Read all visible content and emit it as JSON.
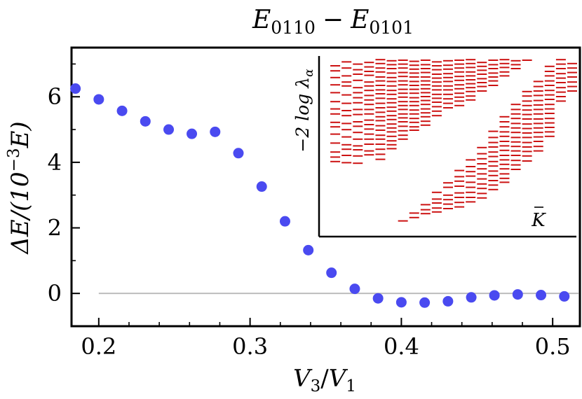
{
  "chart_data": {
    "type": "scatter",
    "title": "E0110 − E0101",
    "title_parts": {
      "E": "E",
      "sub1": "0110",
      "minus": "−",
      "sub2": "0101"
    },
    "xlabel": "V3/V1",
    "xlabel_parts": {
      "V1": "V",
      "s1": "3",
      "slash": "/",
      "V2": "V",
      "s2": "1"
    },
    "ylabel": "ΔE/(10⁻³E)",
    "ylabel_parts": {
      "pre": "ΔE/(10",
      "exp": "−3",
      "post": "E)"
    },
    "xlim": [
      0.182,
      0.518
    ],
    "ylim": [
      -1.0,
      7.5
    ],
    "x_ticks": [
      0.2,
      0.3,
      0.4,
      0.5
    ],
    "x_tick_labels": [
      "0.2",
      "0.3",
      "0.4",
      "0.5"
    ],
    "y_ticks": [
      0,
      2,
      4,
      6
    ],
    "y_tick_labels": [
      "0",
      "2",
      "4",
      "6"
    ],
    "zero_line": {
      "from_x": 0.2,
      "to_x": 0.518,
      "color": "#bdbdbd"
    },
    "marker_color": "#4a4af0",
    "series": [
      {
        "x": [
          0.1846,
          0.2,
          0.2154,
          0.2308,
          0.2462,
          0.2615,
          0.2769,
          0.2923,
          0.3077,
          0.3231,
          0.3385,
          0.3538,
          0.3692,
          0.3846,
          0.4,
          0.4154,
          0.4308,
          0.4462,
          0.4615,
          0.4769,
          0.4923,
          0.5077
        ],
        "y": [
          6.25,
          5.92,
          5.57,
          5.25,
          5.0,
          4.87,
          4.93,
          4.28,
          3.26,
          2.2,
          1.32,
          0.63,
          0.14,
          -0.15,
          -0.27,
          -0.28,
          -0.24,
          -0.12,
          -0.06,
          -0.03,
          -0.05,
          -0.09
        ]
      }
    ],
    "inset": {
      "type": "entanglement-spectrum",
      "ylabel": "−2 log λα",
      "ylabel_parts": {
        "pre": "−2 log λ",
        "sub": "α"
      },
      "xlabel": "K̄",
      "xlabel_parts": {
        "K": "K",
        "bar": "¯"
      },
      "color": "#cc1111",
      "xlim": [
        0,
        22
      ],
      "ylim": [
        0,
        30
      ],
      "columns": [
        {
          "k": 1,
          "levels": [
            1.5,
            2.4,
            3.6,
            4.9,
            6.3,
            7.9,
            9.2,
            10.1,
            11.6,
            12.4,
            13.7,
            15.3,
            16.9,
            17.8,
            18.6
          ]
        },
        {
          "k": 2,
          "levels": [
            0.8,
            1.9,
            3.3,
            4.4,
            5.1,
            6.7,
            8.2,
            9.5,
            10.4,
            11.8,
            12.9,
            14.2,
            15.6,
            16.4,
            17.5,
            18.8
          ]
        },
        {
          "k": 3,
          "levels": [
            1.2,
            2.2,
            3.0,
            4.1,
            5.4,
            6.3,
            7.2,
            8.1,
            9.3,
            10.2,
            11.5,
            12.3,
            13.4,
            14.6,
            15.8,
            16.5,
            17.6,
            18.9
          ]
        },
        {
          "k": 4,
          "levels": [
            0.9,
            1.7,
            2.5,
            3.2,
            4.4,
            5.1,
            5.9,
            6.8,
            7.6,
            8.4,
            9.3,
            10.1,
            11.2,
            12.0,
            12.8,
            13.7,
            14.6,
            15.5,
            16.7,
            17.4
          ]
        },
        {
          "k": 5,
          "levels": [
            0.4,
            1.1,
            1.9,
            2.6,
            3.5,
            4.2,
            5.0,
            5.8,
            6.5,
            7.3,
            8.2,
            9.0,
            9.8,
            10.6,
            11.3,
            12.2,
            13.0,
            13.9,
            14.6,
            15.5,
            16.4,
            17.3,
            18.2
          ]
        },
        {
          "k": 6,
          "levels": [
            0.6,
            1.3,
            2.0,
            2.8,
            3.6,
            4.3,
            5.1,
            5.9,
            6.6,
            7.4,
            8.1,
            8.9,
            9.6,
            10.4,
            11.1,
            11.9,
            12.6,
            13.3,
            14.1,
            14.9,
            15.6,
            16.3
          ]
        },
        {
          "k": 7,
          "levels": [
            0.5,
            1.2,
            1.9,
            2.7,
            3.4,
            4.2,
            4.9,
            5.7,
            6.4,
            7.1,
            7.9,
            8.6,
            9.3,
            10.1,
            10.8,
            11.5,
            12.3,
            13.1,
            13.9,
            14.6
          ]
        },
        {
          "k": 8,
          "levels": [
            0.7,
            1.4,
            2.1,
            2.8,
            3.5,
            4.3,
            5.0,
            5.7,
            6.4,
            7.2,
            7.9,
            8.6,
            9.4,
            10.1,
            10.9,
            11.6,
            12.4,
            13.0
          ]
        },
        {
          "k": 9,
          "levels": [
            0.5,
            1.3,
            2.0,
            2.7,
            3.5,
            4.2,
            4.9,
            5.6,
            6.3,
            7.0,
            7.7,
            8.4,
            9.2,
            9.9,
            10.6,
            11.4,
            12.1
          ]
        },
        {
          "k": 10,
          "levels": [
            0.8,
            1.5,
            2.2,
            3.0,
            3.7,
            4.4,
            5.1,
            5.8,
            6.6,
            7.3,
            8.0,
            8.8,
            9.6,
            10.4
          ]
        },
        {
          "k": 11,
          "levels": [
            0.6,
            1.4,
            2.1,
            2.9,
            3.6,
            4.3,
            5.1,
            5.8,
            6.6,
            7.4,
            8.2,
            9.0
          ]
        },
        {
          "k": 12,
          "levels": [
            0.5,
            1.2,
            1.9,
            2.6,
            3.4,
            4.1,
            4.9,
            5.6,
            6.4,
            7.1,
            7.8,
            8.6
          ]
        },
        {
          "k": 13,
          "levels": [
            0.4,
            1.1,
            1.8,
            2.6,
            3.3,
            4.0,
            4.7,
            5.4,
            6.1,
            6.9,
            7.6
          ]
        },
        {
          "k": 14,
          "levels": [
            0.9,
            1.6,
            2.3,
            3.0,
            3.8,
            4.5,
            5.2,
            6.0
          ]
        },
        {
          "k": 15,
          "levels": [
            0.5,
            1.3,
            2.0,
            2.8,
            3.5,
            4.2,
            5.0
          ]
        },
        {
          "k": 16,
          "levels": [
            0.4,
            1.1,
            1.8,
            2.6,
            3.3
          ]
        },
        {
          "k": 17,
          "levels": [
            0.6,
            1.3,
            2.0
          ]
        },
        {
          "k": 18,
          "levels": [
            0.5
          ]
        },
        {
          "k": 7,
          "levels": [
            29.2
          ]
        },
        {
          "k": 8,
          "levels": [
            27.8,
            28.6
          ]
        },
        {
          "k": 9,
          "levels": [
            26.3,
            27.2,
            27.9
          ]
        },
        {
          "k": 10,
          "levels": [
            24.1,
            25.3,
            26.0,
            26.9,
            27.6
          ]
        },
        {
          "k": 11,
          "levels": [
            22.4,
            23.2,
            24.6,
            25.4,
            26.2,
            27.0
          ]
        },
        {
          "k": 12,
          "levels": [
            20.2,
            21.3,
            22.1,
            23.0,
            24.2,
            25.0,
            25.9,
            26.7
          ]
        },
        {
          "k": 13,
          "levels": [
            18.3,
            19.5,
            20.4,
            21.2,
            22.3,
            23.2,
            24.1,
            25.0,
            25.8
          ]
        },
        {
          "k": 14,
          "levels": [
            16.1,
            17.2,
            18.1,
            19.0,
            19.9,
            20.8,
            21.7,
            22.6,
            23.4,
            24.3,
            25.1
          ]
        },
        {
          "k": 15,
          "levels": [
            13.2,
            14.3,
            15.2,
            16.0,
            16.9,
            17.7,
            18.6,
            19.4,
            20.3,
            21.1,
            22.0,
            22.8,
            23.6
          ]
        },
        {
          "k": 16,
          "levels": [
            10.6,
            11.5,
            12.4,
            13.3,
            14.1,
            15.0,
            15.8,
            16.6,
            17.5,
            18.3,
            19.1,
            19.9,
            20.8,
            21.6,
            22.3
          ]
        },
        {
          "k": 17,
          "levels": [
            8.4,
            9.3,
            10.1,
            10.9,
            11.8,
            12.6,
            13.4,
            14.3,
            15.1,
            15.9,
            16.7,
            17.5,
            18.4,
            19.2,
            20.0
          ]
        },
        {
          "k": 18,
          "levels": [
            6.1,
            6.9,
            7.8,
            8.6,
            9.4,
            10.2,
            11.0,
            11.9,
            12.7,
            13.5,
            14.3,
            15.2,
            16.0,
            16.8,
            17.6,
            18.5
          ]
        },
        {
          "k": 19,
          "levels": [
            4.3,
            5.2,
            6.0,
            6.8,
            7.7,
            8.5,
            9.3,
            10.1,
            11.0,
            11.8,
            12.6,
            13.4,
            14.2,
            15.0,
            15.9,
            16.7
          ]
        },
        {
          "k": 20,
          "levels": [
            1.6,
            2.5,
            3.3,
            4.2,
            5.0,
            5.9,
            6.7,
            7.5,
            8.4,
            9.2,
            10.0,
            10.9,
            11.7,
            12.5,
            13.3,
            14.1
          ]
        },
        {
          "k": 21,
          "levels": [
            0.4,
            1.2,
            2.0,
            2.9,
            3.7,
            4.5,
            5.4,
            6.2,
            7.0,
            7.8
          ]
        },
        {
          "k": 22,
          "levels": [
            1.1,
            1.9,
            2.7,
            3.5,
            4.4,
            5.2,
            6.0
          ]
        }
      ]
    }
  }
}
